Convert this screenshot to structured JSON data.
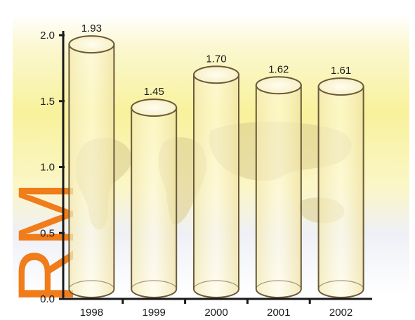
{
  "chart_data": {
    "type": "bar",
    "title": "",
    "xlabel": "",
    "ylabel": "",
    "categories": [
      "1998",
      "1999",
      "2000",
      "2001",
      "2002"
    ],
    "values": [
      1.93,
      1.45,
      1.7,
      1.62,
      1.61
    ],
    "value_labels": [
      "1.93",
      "1.45",
      "1.70",
      "1.62",
      "1.61"
    ],
    "ylim": [
      0.0,
      2.0
    ],
    "yticks": [
      "0.0",
      "0.5",
      "1.0",
      "1.5",
      "2.0"
    ],
    "bar_style": "translucent cylinders",
    "grid": false,
    "background": "yellow gradient with faded world map"
  },
  "watermark": {
    "text": "RM",
    "color": "#f07c1a"
  },
  "colors": {
    "background_top": "#fbf6c4",
    "background_mid": "#f8f29a",
    "map": "#d8c98a",
    "cylinder_fill": "#fbf3c4",
    "cylinder_stroke": "#6b5a3a",
    "axis": "#1a1a1a"
  }
}
